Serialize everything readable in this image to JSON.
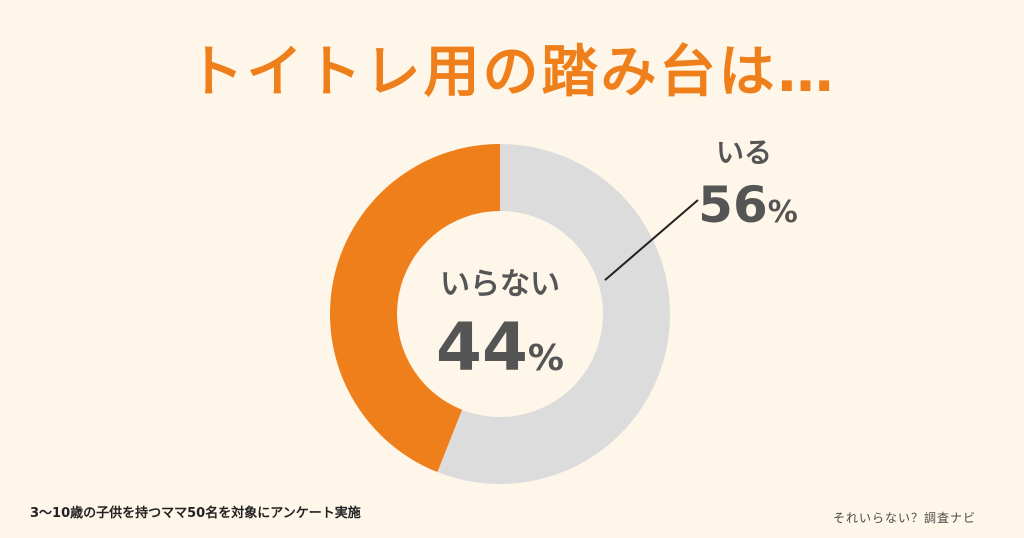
{
  "title": "トイトレ用の踏み台は…",
  "footnote": "3〜10歳の子供を持つママ50名を対象にアンケート実施",
  "brand": "それいらない？調査ナビ",
  "colors": {
    "background": "#fdf6e9",
    "accent": "#ef7f1a",
    "neutral": "#dcdcdc",
    "text": "#555555"
  },
  "chart_data": {
    "type": "pie",
    "style": "donut",
    "categories": [
      "いる",
      "いらない"
    ],
    "values": [
      56,
      44
    ],
    "unit": "%",
    "colors": [
      "#dcdcdc",
      "#ef7f1a"
    ]
  }
}
